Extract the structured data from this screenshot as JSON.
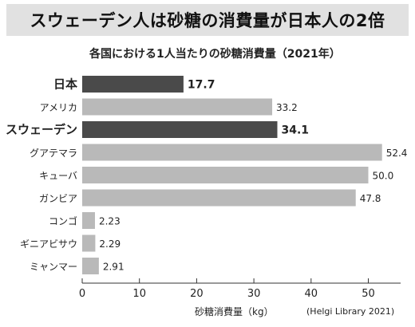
{
  "banner": {
    "title": "スウェーデン人は砂糖の消費量が日本人の2倍"
  },
  "chart_data": {
    "type": "bar",
    "orientation": "horizontal",
    "title": "各国における1人当たりの砂糖消費量（2021年）",
    "xlabel": "砂糖消費量（kg）",
    "source": "(Helgi Library 2021)",
    "xlim": [
      0,
      55
    ],
    "xticks": [
      0,
      10,
      20,
      30,
      40,
      50
    ],
    "categories": [
      "日本",
      "アメリカ",
      "スウェーデン",
      "グアテマラ",
      "キューバ",
      "ガンビア",
      "コンゴ",
      "ギニアビサウ",
      "ミャンマー"
    ],
    "values": [
      17.7,
      33.2,
      34.1,
      52.4,
      50.0,
      47.8,
      2.23,
      2.29,
      2.91
    ],
    "value_labels": [
      "17.7",
      "33.2",
      "34.1",
      "52.4",
      "50.0",
      "47.8",
      "2.23",
      "2.29",
      "2.91"
    ],
    "highlighted": [
      "日本",
      "スウェーデン"
    ],
    "colors": {
      "highlight": "#4a4a4a",
      "normal": "#b9b9b9",
      "banner_bg": "#e1e1e1"
    }
  }
}
